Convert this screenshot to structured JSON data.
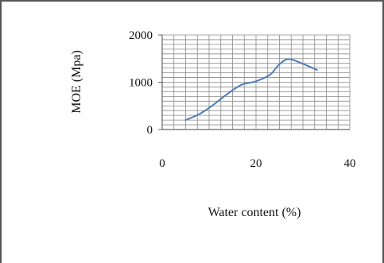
{
  "chart_data": {
    "type": "line",
    "xlabel": "Water content (%)",
    "ylabel": "MOE (Mpa)",
    "xlim": [
      0,
      40
    ],
    "ylim": [
      0,
      2000
    ],
    "x_ticks": [
      0,
      20,
      40
    ],
    "y_ticks": [
      0,
      1000,
      2000
    ],
    "x_tick_labels": [
      "0",
      "20",
      "40"
    ],
    "y_tick_labels": [
      "0",
      "1000",
      "2000"
    ],
    "grid": true,
    "x_minor_step": 2.5,
    "y_minor_step": 100,
    "legend": "none",
    "series": [
      {
        "color": "#4f7cb8",
        "x": [
          5,
          8,
          11,
          14,
          17,
          20,
          23,
          25,
          27,
          30,
          33
        ],
        "y": [
          200,
          330,
          530,
          760,
          950,
          1020,
          1160,
          1380,
          1490,
          1390,
          1260
        ]
      }
    ]
  }
}
